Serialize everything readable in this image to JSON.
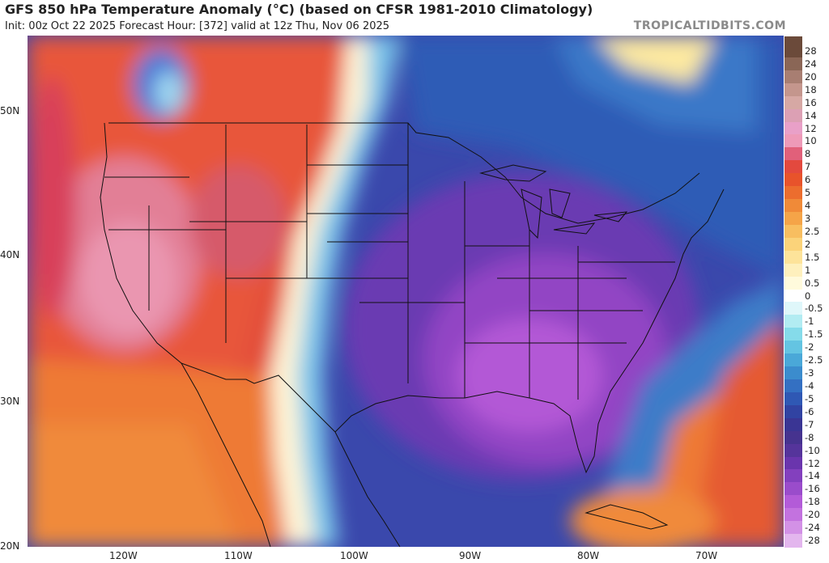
{
  "header": {
    "title": "GFS 850 hPa Temperature Anomaly (°C) (based on CFSR 1981-2010 Climatology)",
    "subtitle": "Init: 00z Oct 22 2025   Forecast Hour: [372]   valid at 12z Thu, Nov 06 2025",
    "brand": "TROPICALTIDBITS.COM"
  },
  "map": {
    "lat_labels": [
      "50N",
      "40N",
      "30N",
      "20N"
    ],
    "lon_labels": [
      "120W",
      "110W",
      "100W",
      "90W",
      "80W",
      "70W"
    ]
  },
  "colorbar": {
    "labels": [
      "28",
      "24",
      "20",
      "18",
      "16",
      "14",
      "12",
      "10",
      "8",
      "7",
      "6",
      "5",
      "4",
      "3",
      "2.5",
      "2",
      "1.5",
      "1",
      "0.5",
      "0",
      "-0.5",
      "-1",
      "-1.5",
      "-2",
      "-2.5",
      "-3",
      "-4",
      "-5",
      "-6",
      "-7",
      "-8",
      "-10",
      "-12",
      "-14",
      "-16",
      "-18",
      "-20",
      "-24",
      "-28"
    ],
    "colors": [
      "#6b4a3a",
      "#8a6656",
      "#a87e72",
      "#c4968d",
      "#d6a8a4",
      "#dca0b4",
      "#e9a0c8",
      "#ee9ab8",
      "#e1607a",
      "#e3493e",
      "#e8532b",
      "#ec6d2e",
      "#f08a38",
      "#f5a448",
      "#f8be60",
      "#fbd37a",
      "#fde39a",
      "#fef0bd",
      "#fffadc",
      "#ffffff",
      "#dff7fa",
      "#b2ecf2",
      "#85dbea",
      "#64c4e2",
      "#4aa8d8",
      "#3b8ccd",
      "#3470c2",
      "#2f58b4",
      "#3143a2",
      "#3a3594",
      "#46338f",
      "#55349b",
      "#6a35ad",
      "#8340be",
      "#9a4ccb",
      "#b35bd8",
      "#c372df",
      "#d391e6",
      "#e3b6ee"
    ]
  }
}
